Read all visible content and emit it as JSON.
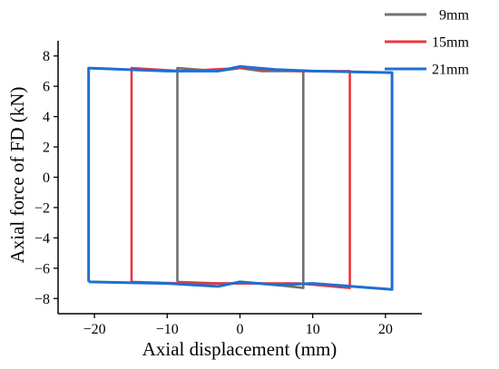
{
  "chart_data": {
    "type": "line",
    "xlabel": "Axial displacement (mm)",
    "ylabel": "Axial force of FD (kN)",
    "xlim": [
      -25,
      25
    ],
    "ylim": [
      -9,
      9
    ],
    "xticks": [
      -20,
      -10,
      0,
      10,
      20
    ],
    "yticks": [
      -8,
      -6,
      -4,
      -2,
      0,
      2,
      4,
      6,
      8
    ],
    "grid": false,
    "legend_position": "top-right outside",
    "series": [
      {
        "name": "9mm",
        "color": "#707070",
        "x": [
          -8.6,
          -8.6,
          -3,
          0,
          3,
          8.7,
          8.7,
          3,
          0,
          -3,
          -8.6
        ],
        "y": [
          -6.9,
          7.2,
          7.0,
          7.2,
          7.0,
          7.0,
          -7.3,
          -7.0,
          -7.0,
          -7.0,
          -6.9
        ]
      },
      {
        "name": "15mm",
        "color": "#e8373d",
        "x": [
          -14.9,
          -14.9,
          -8,
          0,
          8,
          15.1,
          15.1,
          8,
          0,
          -8,
          -14.9
        ],
        "y": [
          -6.9,
          7.2,
          7.0,
          7.2,
          7.0,
          7.0,
          -7.3,
          -7.0,
          -7.0,
          -7.0,
          -6.9
        ]
      },
      {
        "name": "21mm",
        "color": "#1f6fd1",
        "x": [
          -20.8,
          -20.8,
          -10,
          -3,
          0,
          5,
          10,
          20.9,
          20.9,
          10,
          5,
          0,
          -3,
          -10,
          -20.8
        ],
        "y": [
          -6.9,
          7.2,
          7.0,
          7.0,
          7.3,
          7.1,
          7.0,
          6.9,
          -7.4,
          -7.0,
          -7.1,
          -6.9,
          -7.2,
          -7.0,
          -6.9
        ]
      }
    ]
  }
}
